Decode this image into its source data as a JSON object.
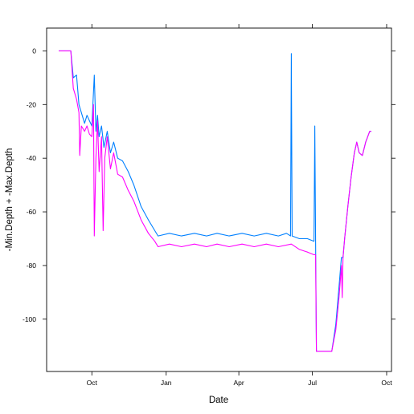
{
  "chart_data": {
    "type": "line",
    "title": "",
    "xlabel": "Date",
    "ylabel": "-Min.Depth + -Max.Depth",
    "x_tick_labels": [
      "Oct",
      "Jan",
      "Apr",
      "Jul",
      "Oct"
    ],
    "x_ticks": [
      "2006-10-01",
      "2007-01-01",
      "2007-04-01",
      "2007-07-01",
      "2007-10-01"
    ],
    "xlim": [
      "2006-08-06",
      "2007-10-07"
    ],
    "ylim": [
      -119.5,
      8.5
    ],
    "y_ticks": [
      0,
      -20,
      -40,
      -60,
      -80,
      -100
    ],
    "y_tick_labels": [
      "0",
      "-20",
      "-40",
      "-60",
      "-80",
      "-100"
    ],
    "grid": false,
    "series": [
      {
        "color": "#0080ff",
        "points": [
          [
            "2006-08-21",
            0
          ],
          [
            "2006-08-30",
            0
          ],
          [
            "2006-09-05",
            0
          ],
          [
            "2006-09-08",
            -10
          ],
          [
            "2006-09-12",
            -9
          ],
          [
            "2006-09-15",
            -20
          ],
          [
            "2006-09-18",
            -23
          ],
          [
            "2006-09-22",
            -27
          ],
          [
            "2006-09-25",
            -24
          ],
          [
            "2006-09-28",
            -26
          ],
          [
            "2006-10-01",
            -28
          ],
          [
            "2006-10-04",
            -9
          ],
          [
            "2006-10-06",
            -30
          ],
          [
            "2006-10-08",
            -24
          ],
          [
            "2006-10-10",
            -32
          ],
          [
            "2006-10-13",
            -28
          ],
          [
            "2006-10-16",
            -36
          ],
          [
            "2006-10-20",
            -30
          ],
          [
            "2006-10-24",
            -38
          ],
          [
            "2006-10-28",
            -34
          ],
          [
            "2006-11-02",
            -40
          ],
          [
            "2006-11-08",
            -41
          ],
          [
            "2006-11-15",
            -45
          ],
          [
            "2006-11-22",
            -50
          ],
          [
            "2006-12-01",
            -58
          ],
          [
            "2006-12-10",
            -63
          ],
          [
            "2006-12-18",
            -67
          ],
          [
            "2006-12-22",
            -69
          ],
          [
            "2007-01-05",
            -68
          ],
          [
            "2007-01-20",
            -69
          ],
          [
            "2007-02-05",
            -68
          ],
          [
            "2007-02-20",
            -69
          ],
          [
            "2007-03-05",
            -68
          ],
          [
            "2007-03-20",
            -69
          ],
          [
            "2007-04-05",
            -68
          ],
          [
            "2007-04-20",
            -69
          ],
          [
            "2007-05-05",
            -68
          ],
          [
            "2007-05-20",
            -69
          ],
          [
            "2007-05-30",
            -68
          ],
          [
            "2007-06-04",
            -69
          ],
          [
            "2007-06-05",
            -1
          ],
          [
            "2007-06-06",
            -69
          ],
          [
            "2007-06-15",
            -70
          ],
          [
            "2007-06-25",
            -70
          ],
          [
            "2007-07-03",
            -71
          ],
          [
            "2007-07-04",
            -28
          ],
          [
            "2007-07-05",
            -71
          ],
          [
            "2007-07-06",
            -112
          ],
          [
            "2007-07-25",
            -112
          ],
          [
            "2007-07-30",
            -102
          ],
          [
            "2007-08-03",
            -88
          ],
          [
            "2007-08-06",
            -77
          ],
          [
            "2007-08-08",
            -77
          ],
          [
            "2007-08-10",
            -70
          ],
          [
            "2007-08-14",
            -58
          ],
          [
            "2007-08-18",
            -47
          ],
          [
            "2007-08-22",
            -38
          ],
          [
            "2007-08-25",
            -34
          ],
          [
            "2007-08-28",
            -38
          ],
          [
            "2007-09-01",
            -39
          ],
          [
            "2007-09-05",
            -34
          ],
          [
            "2007-09-10",
            -30
          ],
          [
            "2007-09-12",
            -30
          ]
        ]
      },
      {
        "color": "#ff00ff",
        "points": [
          [
            "2006-08-21",
            0
          ],
          [
            "2006-08-30",
            0
          ],
          [
            "2006-09-05",
            0
          ],
          [
            "2006-09-08",
            -14
          ],
          [
            "2006-09-12",
            -18
          ],
          [
            "2006-09-15",
            -23
          ],
          [
            "2006-09-16",
            -39
          ],
          [
            "2006-09-18",
            -28
          ],
          [
            "2006-09-22",
            -30
          ],
          [
            "2006-09-25",
            -28
          ],
          [
            "2006-09-28",
            -31
          ],
          [
            "2006-10-01",
            -32
          ],
          [
            "2006-10-03",
            -20
          ],
          [
            "2006-10-04",
            -69
          ],
          [
            "2006-10-06",
            -40
          ],
          [
            "2006-10-08",
            -26
          ],
          [
            "2006-10-10",
            -45
          ],
          [
            "2006-10-13",
            -32
          ],
          [
            "2006-10-15",
            -67
          ],
          [
            "2006-10-17",
            -40
          ],
          [
            "2006-10-20",
            -32
          ],
          [
            "2006-10-24",
            -44
          ],
          [
            "2006-10-28",
            -38
          ],
          [
            "2006-11-02",
            -46
          ],
          [
            "2006-11-08",
            -47
          ],
          [
            "2006-11-15",
            -52
          ],
          [
            "2006-11-22",
            -56
          ],
          [
            "2006-12-01",
            -63
          ],
          [
            "2006-12-10",
            -68
          ],
          [
            "2006-12-18",
            -71
          ],
          [
            "2006-12-22",
            -73
          ],
          [
            "2007-01-05",
            -72
          ],
          [
            "2007-01-20",
            -73
          ],
          [
            "2007-02-05",
            -72
          ],
          [
            "2007-02-20",
            -73
          ],
          [
            "2007-03-05",
            -72
          ],
          [
            "2007-03-20",
            -73
          ],
          [
            "2007-04-05",
            -72
          ],
          [
            "2007-04-20",
            -73
          ],
          [
            "2007-05-05",
            -72
          ],
          [
            "2007-05-20",
            -73
          ],
          [
            "2007-06-05",
            -72
          ],
          [
            "2007-06-15",
            -74
          ],
          [
            "2007-06-25",
            -75
          ],
          [
            "2007-07-03",
            -76
          ],
          [
            "2007-07-05",
            -76
          ],
          [
            "2007-07-06",
            -112
          ],
          [
            "2007-07-25",
            -112
          ],
          [
            "2007-07-30",
            -104
          ],
          [
            "2007-08-03",
            -92
          ],
          [
            "2007-08-06",
            -80
          ],
          [
            "2007-08-07",
            -92
          ],
          [
            "2007-08-08",
            -77
          ],
          [
            "2007-08-10",
            -70
          ],
          [
            "2007-08-14",
            -58
          ],
          [
            "2007-08-18",
            -47
          ],
          [
            "2007-08-22",
            -38
          ],
          [
            "2007-08-25",
            -34
          ],
          [
            "2007-08-28",
            -38
          ],
          [
            "2007-09-01",
            -39
          ],
          [
            "2007-09-05",
            -34
          ],
          [
            "2007-09-10",
            -30
          ],
          [
            "2007-09-12",
            -30
          ]
        ]
      }
    ]
  }
}
